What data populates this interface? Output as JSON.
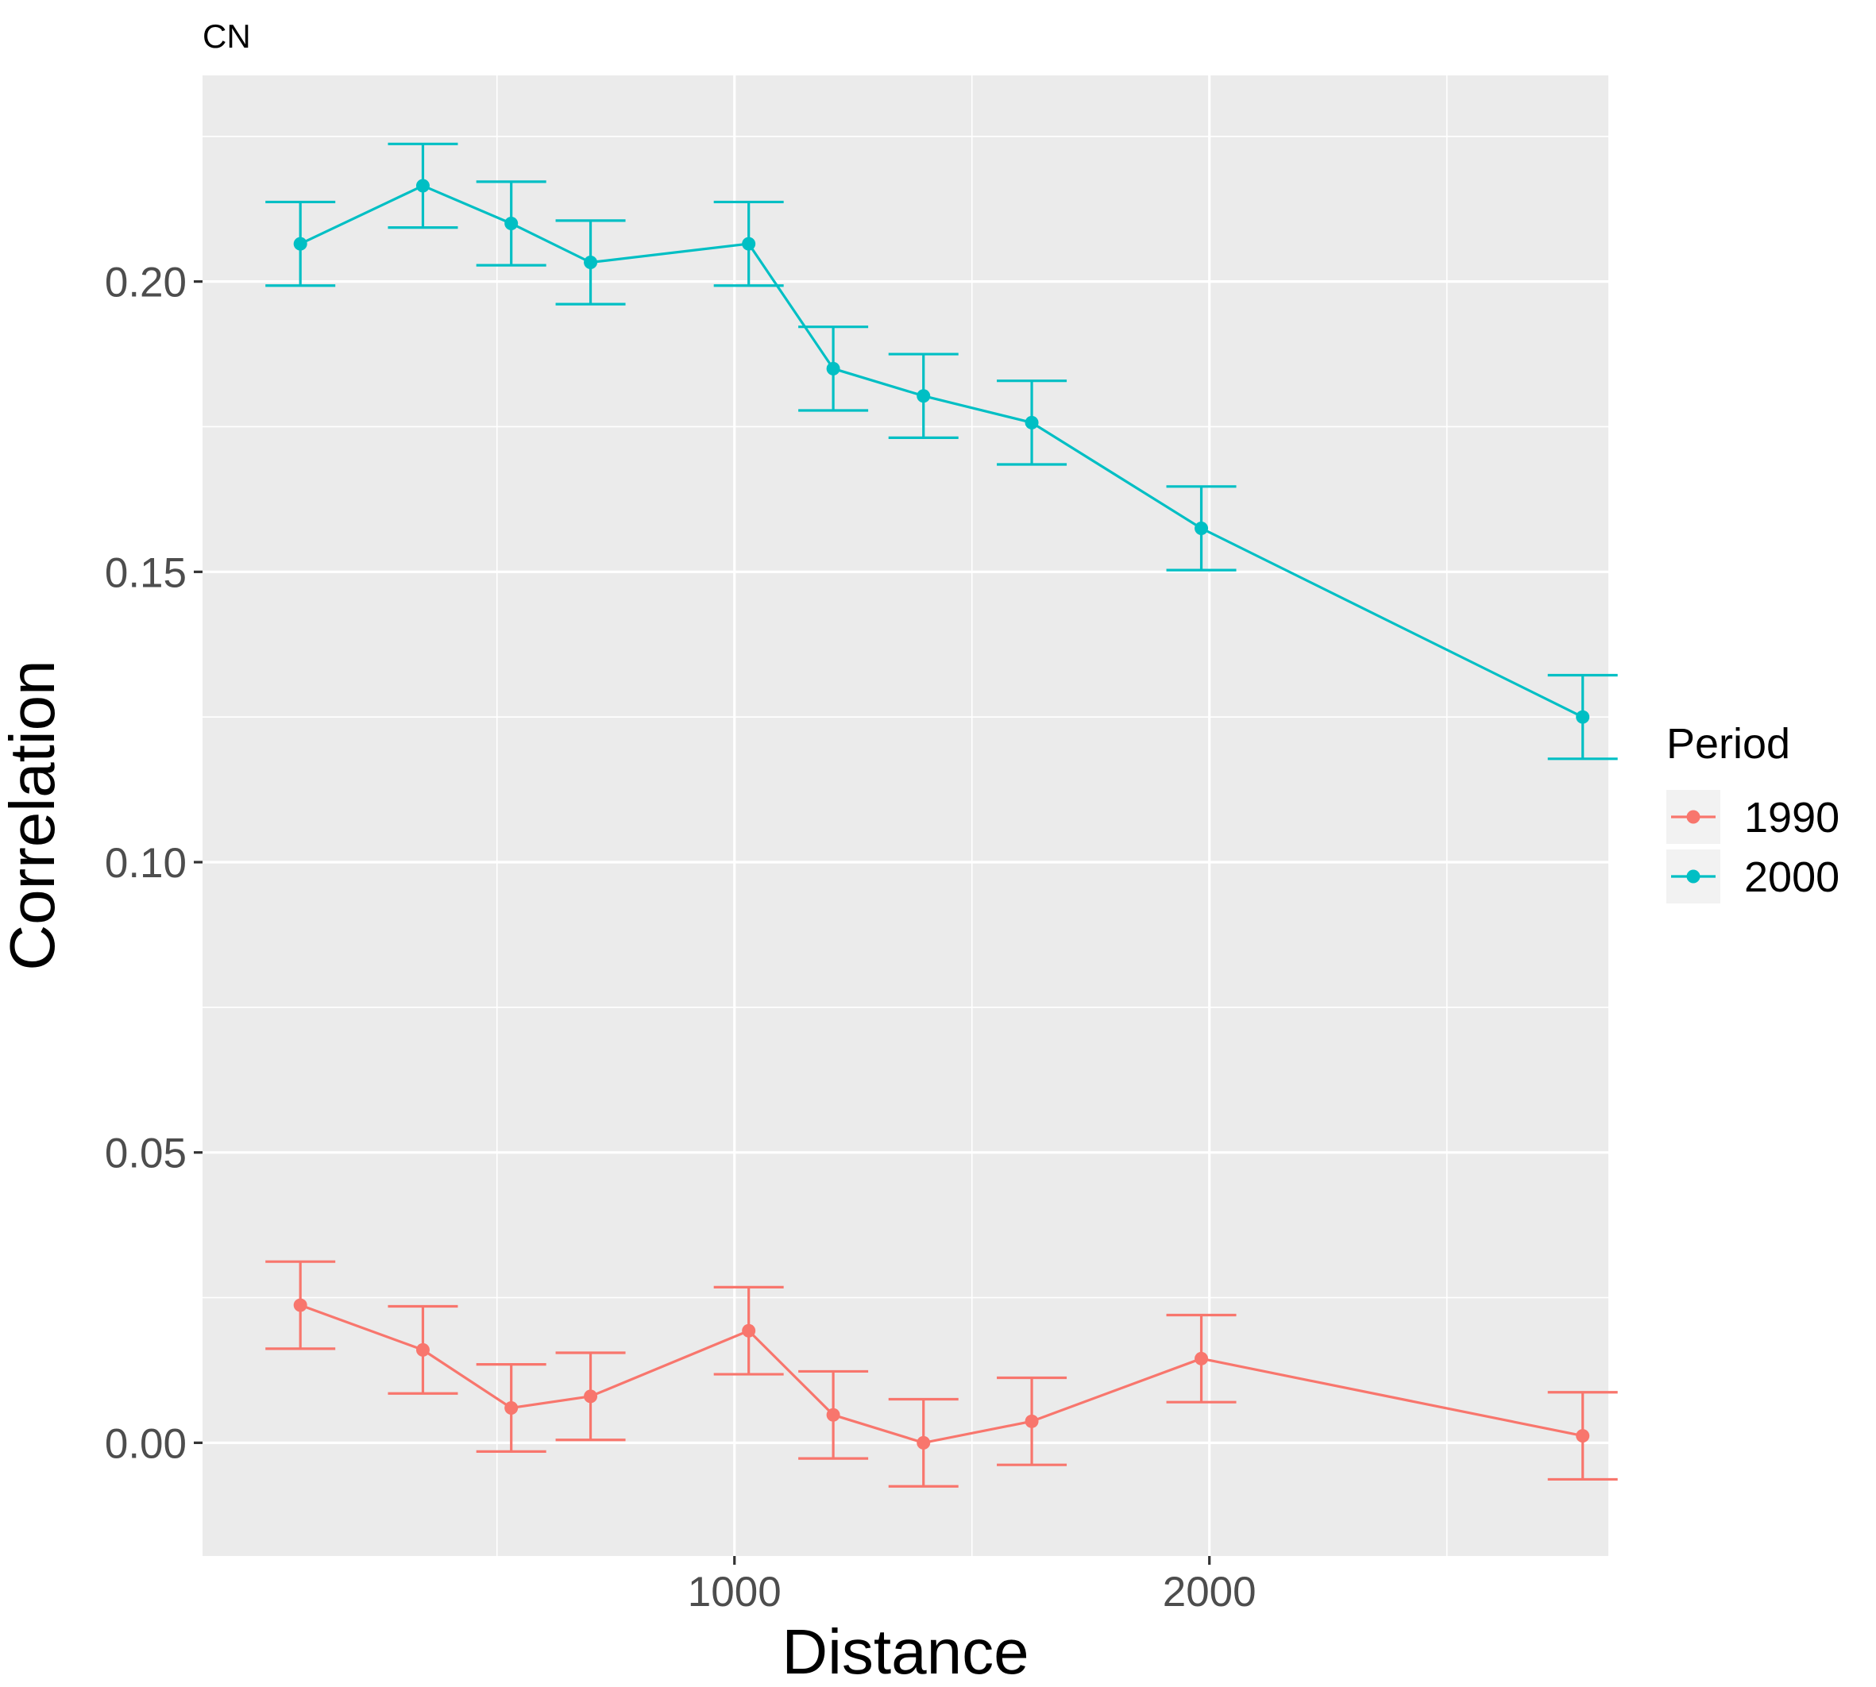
{
  "chart_data": {
    "type": "line",
    "title": "CN",
    "xlabel": "Distance",
    "ylabel": "Correlation",
    "xlim": [
      -120,
      2840
    ],
    "ylim": [
      -0.0195,
      0.2355
    ],
    "x_ticks": [
      1000,
      2000
    ],
    "x_minor_ticks": [
      500,
      1500,
      2500
    ],
    "y_ticks": [
      0.0,
      0.05,
      0.1,
      0.15,
      0.2
    ],
    "y_tick_labels": [
      "0.00",
      "0.05",
      "0.10",
      "0.15",
      "0.20"
    ],
    "y_minor_ticks": [
      0.025,
      0.075,
      0.125,
      0.175,
      0.225
    ],
    "grid": true,
    "legend": {
      "title": "Period",
      "position": "right"
    },
    "x": [
      86,
      344,
      530,
      697,
      1030,
      1208,
      1398,
      1626,
      1983,
      2786
    ],
    "series": [
      {
        "name": "1990",
        "color": "#F8766D",
        "values": [
          0.0237,
          0.016,
          0.006,
          0.008,
          0.0193,
          0.0048,
          0.0,
          0.0037,
          0.0145,
          0.0012
        ],
        "error": [
          0.0075,
          0.0075,
          0.0075,
          0.0075,
          0.0075,
          0.0075,
          0.0075,
          0.0075,
          0.0075,
          0.0075
        ]
      },
      {
        "name": "2000",
        "color": "#00BFC4",
        "values": [
          0.2065,
          0.2165,
          0.21,
          0.2033,
          0.2065,
          0.185,
          0.1803,
          0.1757,
          0.1575,
          0.125
        ],
        "error": [
          0.0072,
          0.0072,
          0.0072,
          0.0072,
          0.0072,
          0.0072,
          0.0072,
          0.0072,
          0.0072,
          0.0072
        ]
      }
    ]
  }
}
